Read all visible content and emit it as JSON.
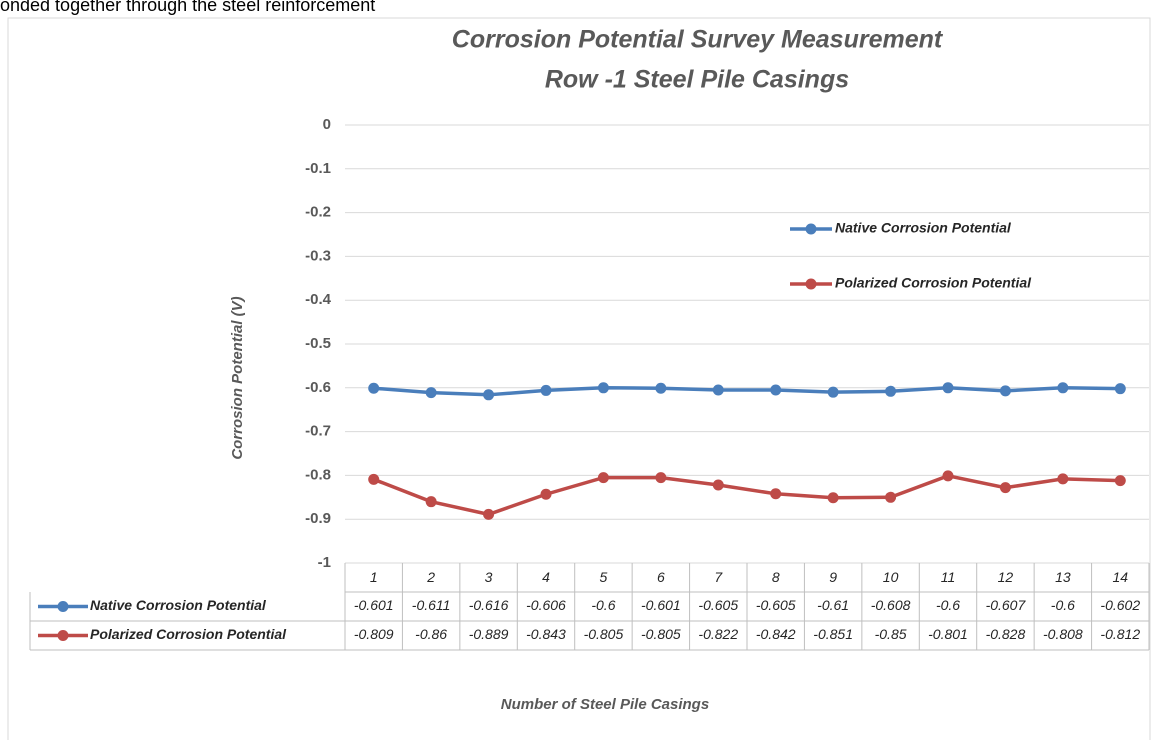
{
  "context_text": "onded together through the steel reinforcement",
  "chart_data": {
    "type": "line",
    "title": [
      "Corrosion Potential Survey Measurement",
      "Row -1 Steel Pile Casings"
    ],
    "y_label": "Corrosion Potential (V)",
    "x_label": "Number of Steel Pile Casings",
    "categories": [
      "1",
      "2",
      "3",
      "4",
      "5",
      "6",
      "7",
      "8",
      "9",
      "10",
      "11",
      "12",
      "13",
      "14"
    ],
    "series": [
      {
        "name": "Native Corrosion Potential",
        "color": "#4a7ebb",
        "values": [
          -0.601,
          -0.611,
          -0.616,
          -0.606,
          -0.6,
          -0.601,
          -0.605,
          -0.605,
          -0.61,
          -0.608,
          -0.6,
          -0.607,
          -0.6,
          -0.602
        ]
      },
      {
        "name": "Polarized Corrosion Potential",
        "color": "#be4b48",
        "values": [
          -0.809,
          -0.86,
          -0.889,
          -0.843,
          -0.805,
          -0.805,
          -0.822,
          -0.842,
          -0.851,
          -0.85,
          -0.801,
          -0.828,
          -0.808,
          -0.812
        ]
      }
    ],
    "ylim": [
      -1,
      0
    ],
    "yticks": [
      0,
      -0.1,
      -0.2,
      -0.3,
      -0.4,
      -0.5,
      -0.6,
      -0.7,
      -0.8,
      -0.9,
      -1
    ],
    "grid": true,
    "data_table": true
  }
}
